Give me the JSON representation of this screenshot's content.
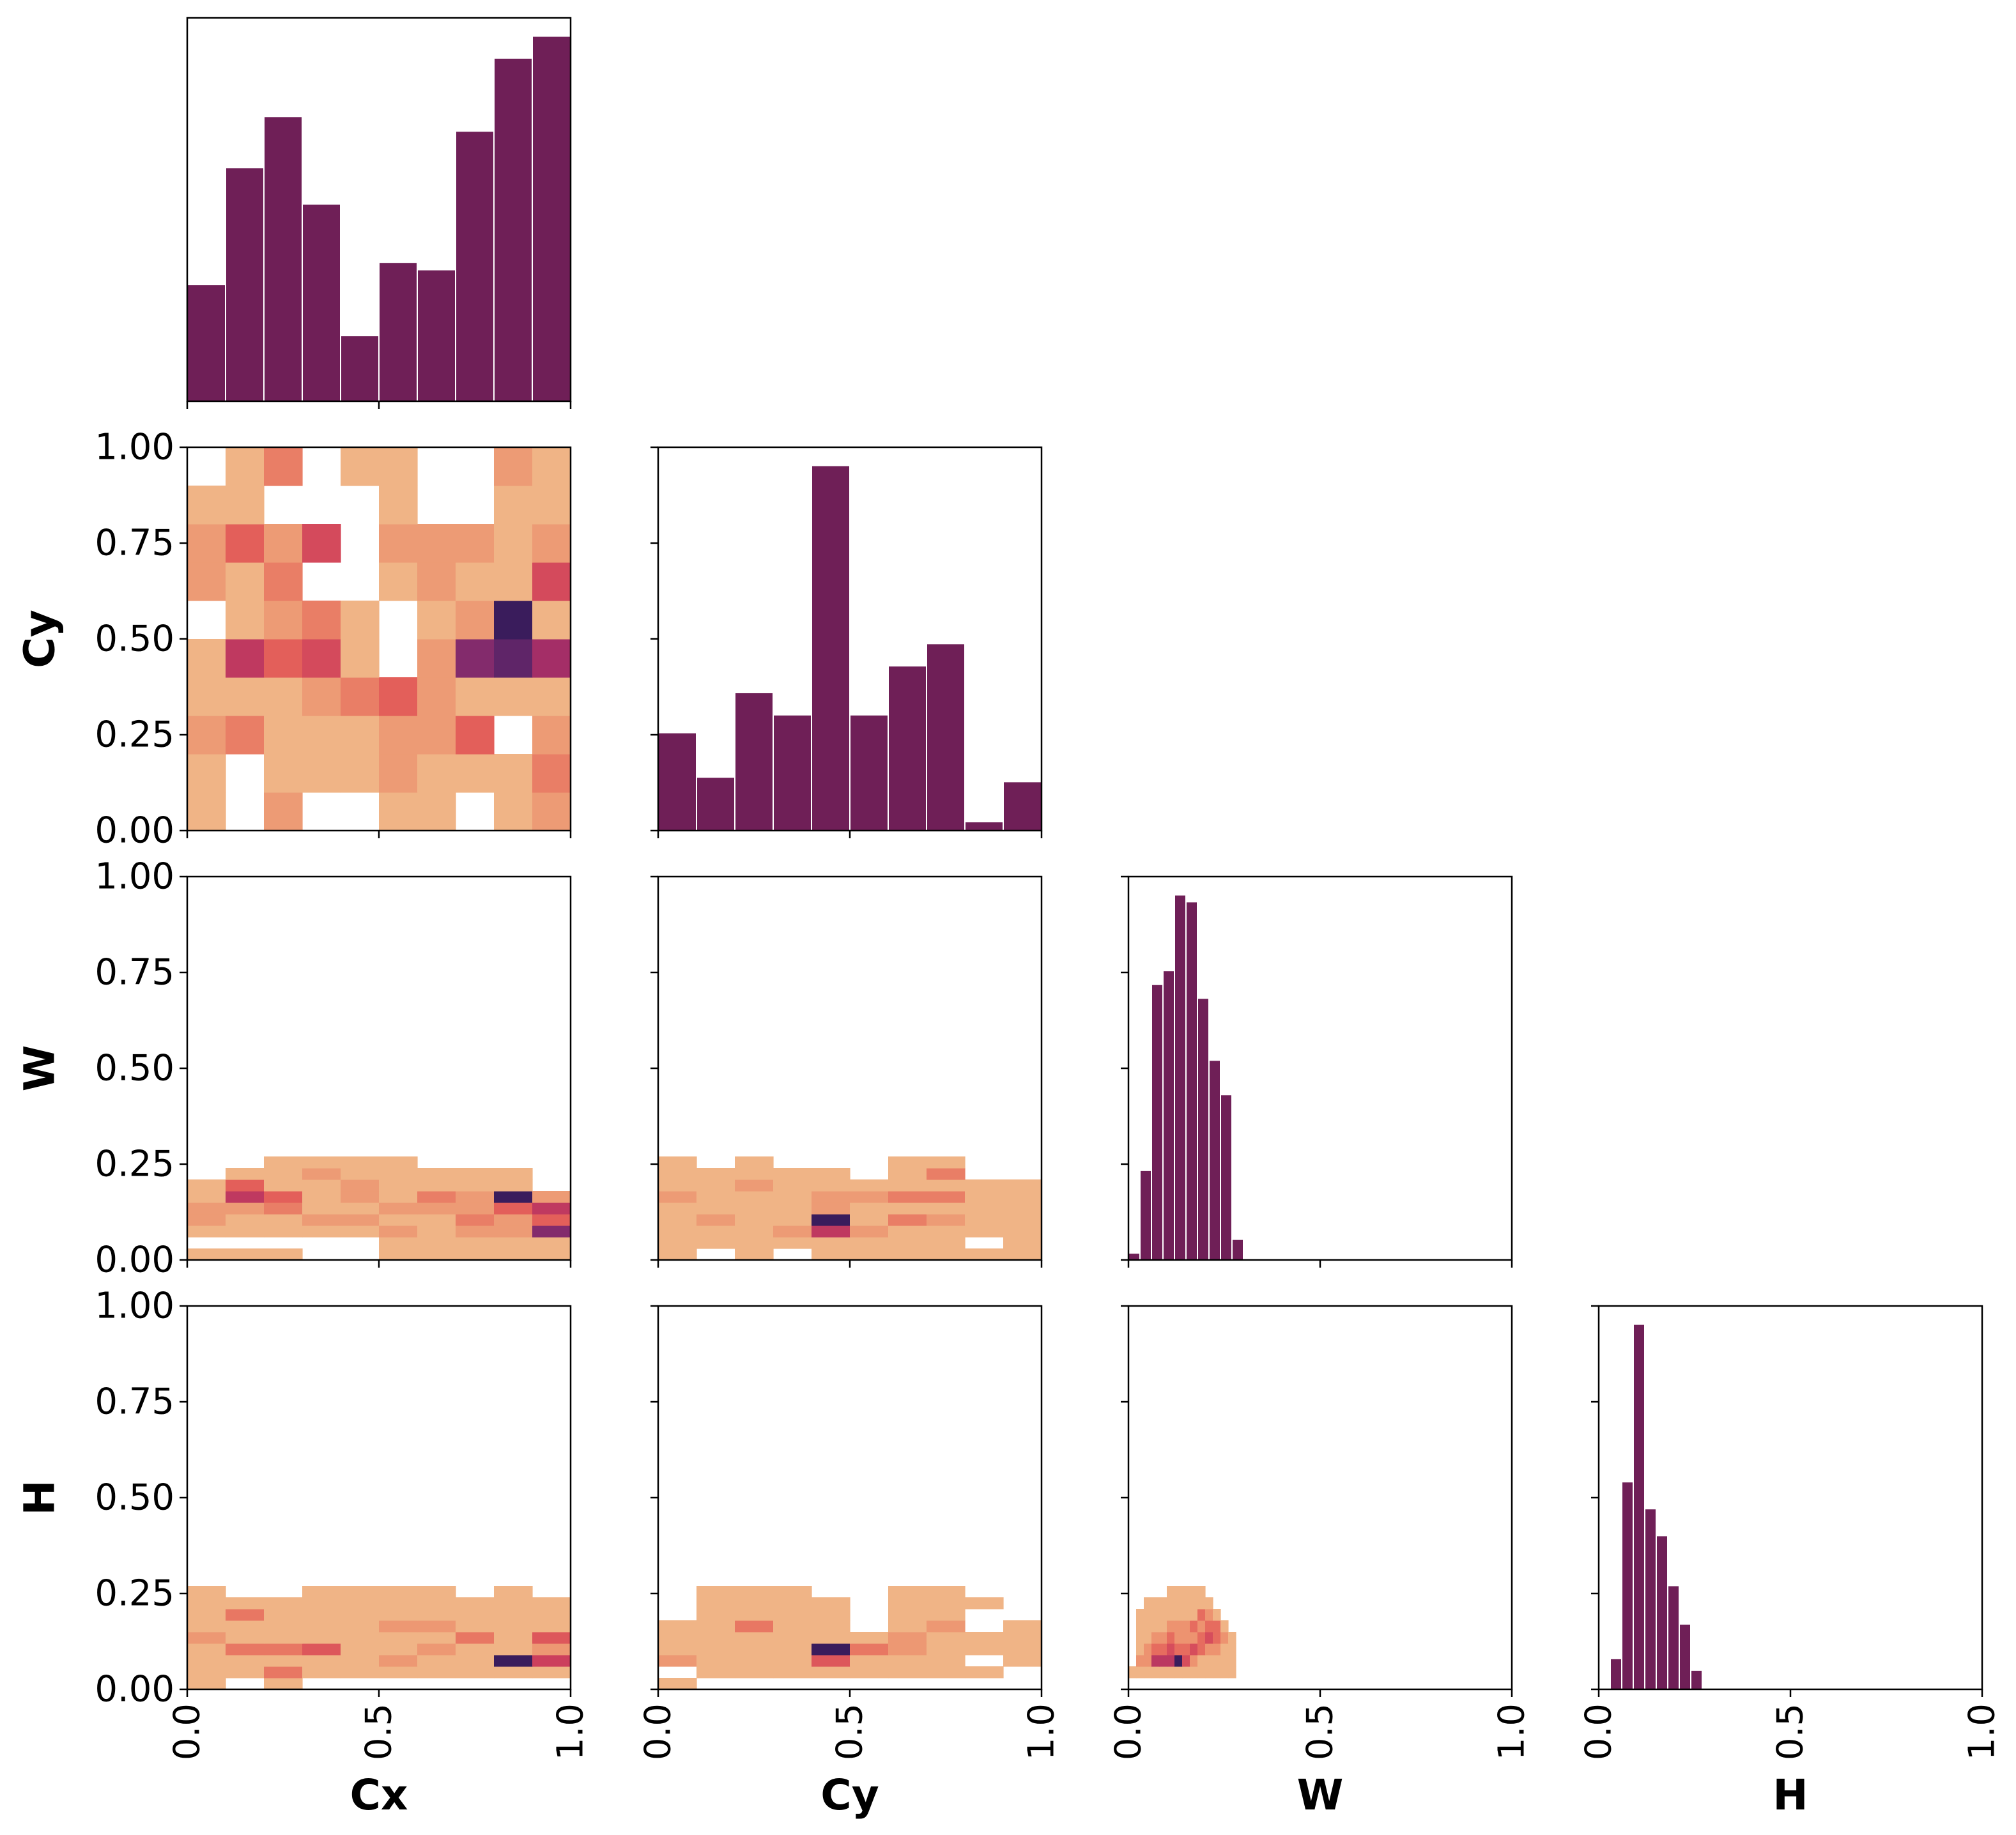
{
  "chart_data": {
    "type": "pairplot",
    "variables": [
      "Cx",
      "Cy",
      "W",
      "H"
    ],
    "xlim": [
      0.0,
      1.0
    ],
    "ylim": [
      0.0,
      1.0
    ],
    "xticks": [
      "0.0",
      "0.5",
      "1.0"
    ],
    "yticks": [
      "0.00",
      "0.25",
      "0.50",
      "0.75",
      "1.00"
    ],
    "hist_color": "#6f1f57",
    "heatmap_colors": {
      "low": "#f0b486",
      "high": "#3a1c5c"
    },
    "histograms": [
      {
        "variable": "Cx",
        "bin_width": 0.1,
        "bins_start": 0.0,
        "counts": [
          16,
          32,
          39,
          27,
          9,
          19,
          18,
          37,
          47,
          50
        ]
      },
      {
        "variable": "Cy",
        "bin_width": 0.1,
        "bins_start": 0.0,
        "counts": [
          22,
          12,
          31,
          26,
          82,
          26,
          37,
          42,
          2,
          11
        ]
      },
      {
        "variable": "W",
        "bin_width": 0.03,
        "bins_start": 0.0,
        "counts": [
          1,
          13,
          40,
          42,
          53,
          52,
          38,
          29,
          24,
          3
        ]
      },
      {
        "variable": "H",
        "bin_width": 0.03,
        "bins_start": 0.03,
        "counts": [
          8,
          54,
          95,
          47,
          40,
          27,
          17,
          5
        ]
      }
    ],
    "heatmaps": [
      {
        "x": "Cx",
        "y": "Cy",
        "xbin": 0.1,
        "ybin": 0.1,
        "xstart": 0.0,
        "ystart": 0.0,
        "density": [
          [
            1,
            0,
            2,
            0,
            0,
            1,
            1,
            0,
            1,
            2
          ],
          [
            1,
            0,
            1,
            1,
            1,
            2,
            1,
            1,
            1,
            3
          ],
          [
            2,
            3,
            1,
            1,
            1,
            2,
            2,
            4,
            0,
            2
          ],
          [
            1,
            1,
            1,
            2,
            3,
            4,
            2,
            1,
            1,
            1
          ],
          [
            1,
            6,
            4,
            5,
            1,
            0,
            2,
            8,
            9,
            7
          ],
          [
            0,
            1,
            2,
            3,
            1,
            0,
            1,
            2,
            10,
            1
          ],
          [
            2,
            1,
            3,
            0,
            0,
            1,
            2,
            1,
            1,
            5
          ],
          [
            2,
            4,
            2,
            5,
            0,
            2,
            2,
            2,
            1,
            2
          ],
          [
            1,
            1,
            0,
            0,
            0,
            1,
            0,
            0,
            1,
            1
          ],
          [
            0,
            1,
            3,
            0,
            1,
            1,
            0,
            0,
            2,
            1
          ]
        ]
      },
      {
        "x": "Cx",
        "y": "W",
        "xbin": 0.1,
        "ybin": 0.03,
        "xstart": 0.0,
        "ystart": 0.0,
        "density": [
          [
            1,
            1,
            1,
            0,
            0,
            1,
            1,
            1,
            1,
            1
          ],
          [
            0,
            0,
            0,
            0,
            0,
            1,
            1,
            1,
            1,
            1
          ],
          [
            1,
            1,
            1,
            1,
            1,
            2,
            1,
            2,
            2,
            8
          ],
          [
            2,
            1,
            1,
            2,
            2,
            1,
            1,
            3,
            2,
            4
          ],
          [
            2,
            2,
            3,
            1,
            1,
            2,
            2,
            2,
            4,
            6
          ],
          [
            1,
            6,
            4,
            1,
            2,
            1,
            3,
            2,
            10,
            2
          ],
          [
            1,
            4,
            1,
            1,
            2,
            1,
            1,
            1,
            1,
            0
          ],
          [
            0,
            1,
            1,
            2,
            1,
            1,
            1,
            1,
            1,
            0
          ],
          [
            0,
            0,
            1,
            1,
            1,
            1,
            0,
            0,
            0,
            0
          ],
          [
            0,
            0,
            0,
            0,
            0,
            0,
            0,
            0,
            0,
            0
          ]
        ]
      },
      {
        "x": "Cy",
        "y": "W",
        "xbin": 0.1,
        "ybin": 0.03,
        "xstart": 0.0,
        "ystart": 0.0,
        "density": [
          [
            1,
            0,
            1,
            0,
            1,
            1,
            1,
            1,
            1,
            1
          ],
          [
            1,
            1,
            1,
            1,
            1,
            1,
            1,
            1,
            0,
            1
          ],
          [
            1,
            1,
            1,
            2,
            6,
            2,
            1,
            1,
            1,
            1
          ],
          [
            1,
            2,
            1,
            1,
            10,
            1,
            3,
            2,
            1,
            1
          ],
          [
            1,
            1,
            1,
            1,
            2,
            1,
            1,
            1,
            1,
            1
          ],
          [
            2,
            1,
            1,
            1,
            2,
            2,
            3,
            3,
            1,
            1
          ],
          [
            1,
            1,
            2,
            1,
            1,
            1,
            1,
            1,
            1,
            1
          ],
          [
            1,
            1,
            1,
            1,
            1,
            0,
            1,
            3,
            0,
            0
          ],
          [
            1,
            0,
            1,
            0,
            0,
            0,
            1,
            1,
            0,
            0
          ],
          [
            0,
            0,
            0,
            0,
            0,
            0,
            0,
            0,
            0,
            0
          ]
        ]
      },
      {
        "x": "Cx",
        "y": "H",
        "xbin": 0.1,
        "ybin": 0.03,
        "xstart": 0.0,
        "ystart": 0.0,
        "density": [
          [
            1,
            0,
            1,
            0,
            0,
            0,
            0,
            0,
            0,
            0
          ],
          [
            1,
            1,
            3,
            1,
            1,
            1,
            1,
            1,
            1,
            1
          ],
          [
            1,
            1,
            1,
            1,
            1,
            2,
            1,
            1,
            9,
            5
          ],
          [
            1,
            3,
            3,
            4,
            1,
            1,
            2,
            1,
            1,
            2
          ],
          [
            2,
            1,
            1,
            1,
            1,
            1,
            1,
            3,
            1,
            4
          ],
          [
            1,
            1,
            1,
            1,
            1,
            2,
            2,
            1,
            1,
            1
          ],
          [
            1,
            3,
            1,
            1,
            1,
            1,
            1,
            1,
            1,
            1
          ],
          [
            1,
            1,
            1,
            1,
            1,
            1,
            1,
            1,
            1,
            1
          ],
          [
            1,
            0,
            0,
            1,
            1,
            1,
            1,
            0,
            1,
            0
          ],
          [
            0,
            0,
            0,
            0,
            0,
            0,
            0,
            0,
            0,
            0
          ]
        ]
      },
      {
        "x": "Cy",
        "y": "H",
        "xbin": 0.1,
        "ybin": 0.03,
        "xstart": 0.0,
        "ystart": 0.0,
        "density": [
          [
            1,
            0,
            0,
            0,
            0,
            0,
            0,
            0,
            0,
            0
          ],
          [
            0,
            1,
            1,
            1,
            1,
            1,
            1,
            1,
            1,
            0
          ],
          [
            2,
            1,
            1,
            1,
            4,
            1,
            1,
            1,
            0,
            1
          ],
          [
            1,
            1,
            1,
            1,
            9,
            3,
            2,
            1,
            1,
            1
          ],
          [
            1,
            1,
            1,
            1,
            1,
            1,
            2,
            1,
            1,
            1
          ],
          [
            1,
            1,
            3,
            1,
            1,
            0,
            1,
            2,
            0,
            1
          ],
          [
            0,
            1,
            1,
            1,
            1,
            0,
            1,
            1,
            0,
            0
          ],
          [
            0,
            1,
            1,
            1,
            1,
            0,
            1,
            1,
            1,
            0
          ],
          [
            0,
            1,
            1,
            1,
            0,
            0,
            1,
            1,
            0,
            0
          ],
          [
            0,
            0,
            0,
            0,
            0,
            0,
            0,
            0,
            0,
            0
          ]
        ]
      },
      {
        "x": "W",
        "y": "H",
        "xbin": 0.02,
        "ybin": 0.03,
        "xstart": 0.0,
        "ystart": 0.0,
        "density": [
          [
            0,
            0,
            0,
            0,
            0,
            0,
            0,
            0,
            0,
            0,
            0,
            0,
            0,
            0,
            0
          ],
          [
            1,
            1,
            1,
            1,
            1,
            1,
            1,
            1,
            1,
            1,
            1,
            1,
            1,
            1,
            0
          ],
          [
            0,
            2,
            2,
            5,
            5,
            5,
            8,
            4,
            2,
            1,
            1,
            1,
            1,
            1,
            0
          ],
          [
            0,
            1,
            2,
            3,
            3,
            4,
            3,
            3,
            4,
            3,
            2,
            2,
            1,
            1,
            0
          ],
          [
            0,
            1,
            1,
            2,
            2,
            3,
            2,
            2,
            2,
            3,
            4,
            3,
            2,
            1,
            0
          ],
          [
            0,
            1,
            1,
            1,
            1,
            2,
            2,
            2,
            3,
            2,
            3,
            3,
            1,
            0,
            0
          ],
          [
            0,
            1,
            1,
            1,
            1,
            1,
            1,
            1,
            1,
            3,
            2,
            1,
            0,
            0,
            0
          ],
          [
            0,
            0,
            1,
            1,
            1,
            1,
            1,
            1,
            1,
            1,
            1,
            0,
            0,
            0,
            0
          ],
          [
            0,
            0,
            0,
            0,
            0,
            1,
            1,
            1,
            1,
            1,
            0,
            0,
            0,
            0,
            0
          ],
          [
            0,
            0,
            0,
            0,
            0,
            0,
            0,
            0,
            0,
            0,
            0,
            0,
            0,
            0,
            0
          ]
        ]
      }
    ]
  }
}
